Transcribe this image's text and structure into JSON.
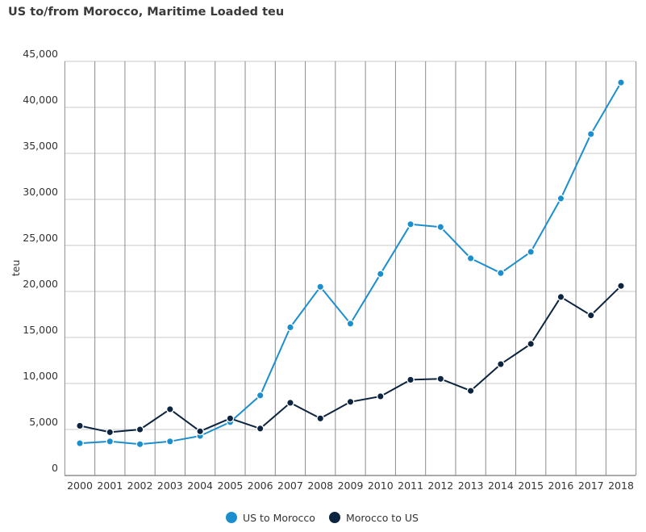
{
  "chart_data": {
    "type": "line",
    "title": "US to/from Morocco, Maritime Loaded teu",
    "ylabel": "teu",
    "xlabel": "",
    "ylim": [
      0,
      45000
    ],
    "yticks": [
      0,
      5000,
      10000,
      15000,
      20000,
      25000,
      30000,
      35000,
      40000,
      45000
    ],
    "ytick_labels": [
      "0",
      "5,000",
      "10,000",
      "15,000",
      "20,000",
      "25,000",
      "30,000",
      "35,000",
      "40,000",
      "45,000"
    ],
    "categories": [
      "2000",
      "2001",
      "2002",
      "2003",
      "2004",
      "2005",
      "2006",
      "2007",
      "2008",
      "2009",
      "2010",
      "2011",
      "2012",
      "2013",
      "2014",
      "2015",
      "2016",
      "2017",
      "2018"
    ],
    "grid": "both",
    "legend_position": "bottom",
    "series": [
      {
        "name": "US to Morocco",
        "color": "#1b8fce",
        "values": [
          3500,
          3700,
          3400,
          3700,
          4300,
          5800,
          8700,
          16100,
          20500,
          16500,
          21900,
          27300,
          27000,
          23600,
          22000,
          24300,
          30100,
          37100,
          42700
        ]
      },
      {
        "name": "Morocco to US",
        "color": "#0d2440",
        "values": [
          5400,
          4700,
          5000,
          7200,
          4800,
          6200,
          5100,
          7900,
          6200,
          8000,
          8600,
          10400,
          10500,
          9200,
          12100,
          14300,
          19400,
          17400,
          20600
        ]
      }
    ]
  }
}
